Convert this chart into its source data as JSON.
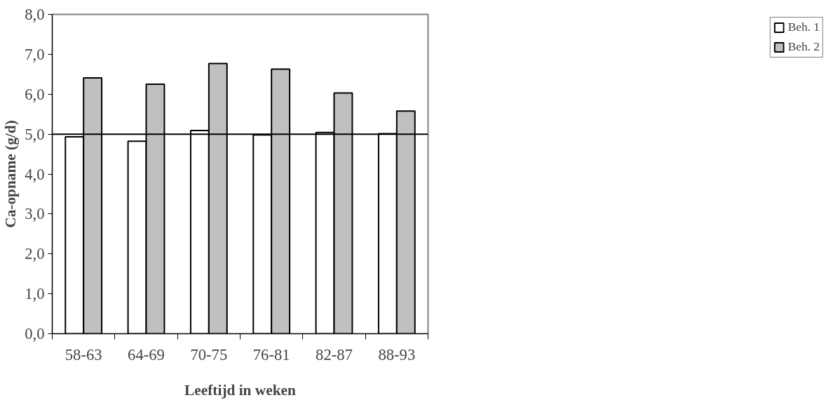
{
  "chart_data": {
    "type": "bar",
    "xlabel": "Leeftijd in weken",
    "ylabel": "Ca-opname (g/d)",
    "categories": [
      "58-63",
      "64-69",
      "70-75",
      "76-81",
      "82-87",
      "88-93"
    ],
    "series": [
      {
        "name": "Beh. 1",
        "color": "#ffffff",
        "values": [
          4.93,
          4.82,
          5.09,
          4.98,
          5.04,
          5.01
        ]
      },
      {
        "name": "Beh. 2",
        "color": "#c0c0c0",
        "values": [
          6.41,
          6.25,
          6.77,
          6.63,
          6.03,
          5.58
        ]
      }
    ],
    "ylim": [
      0,
      8
    ],
    "yticks": [
      {
        "value": 0,
        "label": "0,0"
      },
      {
        "value": 1,
        "label": "1,0"
      },
      {
        "value": 2,
        "label": "2,0"
      },
      {
        "value": 3,
        "label": "3,0"
      },
      {
        "value": 4,
        "label": "4,0"
      },
      {
        "value": 5,
        "label": "5,0"
      },
      {
        "value": 6,
        "label": "6,0"
      },
      {
        "value": 7,
        "label": "7,0"
      },
      {
        "value": 8,
        "label": "8,0"
      }
    ],
    "ref_lines": [
      {
        "axis": "y",
        "value": 5,
        "color": "#000000"
      }
    ],
    "grid": false,
    "legend": "right"
  }
}
